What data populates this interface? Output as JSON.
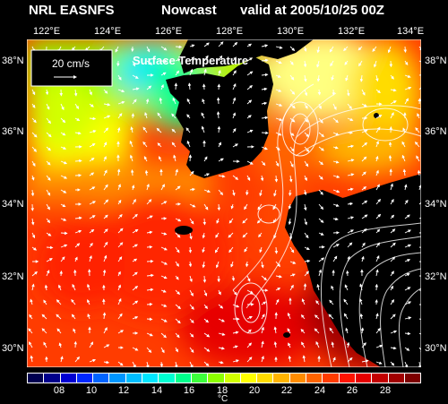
{
  "header": {
    "model": "NRL EASNFS",
    "product": "Nowcast",
    "valid": "valid at 2005/10/25 00Z"
  },
  "axes": {
    "longitudes": [
      "122°E",
      "124°E",
      "126°E",
      "128°E",
      "130°E",
      "132°E",
      "134°E"
    ],
    "latitudes_left": [
      "38°N",
      "36°N",
      "34°N",
      "32°N",
      "30°N"
    ],
    "latitudes_right": [
      "38°N",
      "36°N",
      "34°N",
      "32°N",
      "30°N"
    ]
  },
  "map": {
    "field_label": "Surface Temperature",
    "reference_vector": "20 cm/s",
    "land_color": "#000000"
  },
  "colorbar": {
    "tick_labels": [
      "08",
      "10",
      "12",
      "14",
      "16",
      "18",
      "20",
      "22",
      "24",
      "26",
      "28"
    ],
    "unit": "°C",
    "colors": [
      "#000050",
      "#00008c",
      "#0000d2",
      "#0028ff",
      "#0064ff",
      "#0096ff",
      "#00beff",
      "#00e6ff",
      "#00ffd2",
      "#00ff8c",
      "#3cff3c",
      "#8cff00",
      "#d2ff00",
      "#ffff00",
      "#ffdc00",
      "#ffb400",
      "#ff8c00",
      "#ff6400",
      "#ff3c00",
      "#ff1400",
      "#e60000",
      "#c30000",
      "#a00000",
      "#7d0000"
    ]
  }
}
